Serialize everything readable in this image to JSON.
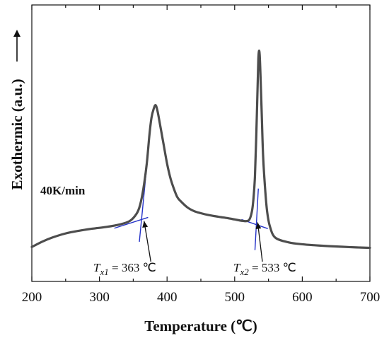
{
  "chart_data": {
    "type": "line",
    "xlabel": "Temperature (℃)",
    "ylabel": "Exothermic (a.u.)",
    "xlim": [
      200,
      700
    ],
    "ylim": [
      0,
      100
    ],
    "xticks": [
      200,
      300,
      400,
      500,
      600,
      700
    ],
    "yticks_shown": false,
    "grid": false,
    "series": [
      {
        "color": "#4d4d4d",
        "x": [
          200,
          215,
          230,
          250,
          270,
          290,
          310,
          330,
          345,
          355,
          360,
          365,
          370,
          374,
          377,
          380,
          383,
          386,
          390,
          395,
          400,
          405,
          410,
          415,
          420,
          430,
          440,
          450,
          460,
          470,
          480,
          490,
          500,
          510,
          515,
          520,
          523,
          526,
          528,
          530,
          532,
          534,
          535,
          536,
          537,
          538,
          540,
          542,
          545,
          548,
          552,
          560,
          580,
          600,
          620,
          640,
          660,
          680,
          700
        ],
        "y": [
          6,
          8.5,
          10.5,
          12.5,
          13.8,
          14.8,
          15.6,
          16.8,
          18.5,
          22,
          26,
          34,
          46,
          60,
          68,
          72,
          74,
          71,
          64,
          55,
          46,
          39,
          34,
          30,
          28,
          25,
          23.2,
          22.2,
          21.4,
          20.8,
          20.3,
          19.8,
          19.2,
          18.6,
          18.4,
          18.6,
          20,
          24,
          30,
          40,
          60,
          84,
          96,
          100,
          98,
          90,
          70,
          50,
          34,
          23,
          16,
          10.5,
          8.2,
          7.3,
          6.8,
          6.4,
          6.1,
          5.8,
          5.6
        ]
      }
    ],
    "tangent_color": "#2432c8",
    "annotations": [
      {
        "label": "T",
        "subscript": "x1",
        "value_text": " = 363 ℃",
        "x": 363
      },
      {
        "label": "T",
        "subscript": "x2",
        "value_text": " = 533 ℃",
        "x": 533
      }
    ],
    "rate_label": "40K/min"
  }
}
